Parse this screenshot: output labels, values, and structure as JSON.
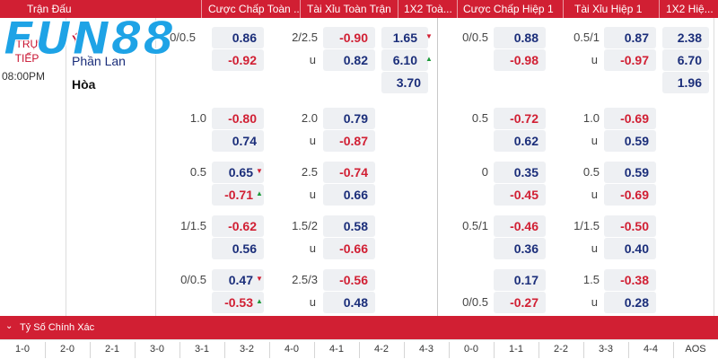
{
  "header": {
    "columns": [
      "Trận Đấu",
      "Cược Chấp Toàn ...",
      "Tài Xỉu Toàn Trận",
      "1X2 Toà...",
      "Cược Chấp Hiệp 1",
      "Tài Xỉu Hiệp 1",
      "1X2 Hiệ..."
    ]
  },
  "logo": {
    "text": "FUN88",
    "color": "#1ea3e6"
  },
  "match": {
    "status_line1": "TRỰC",
    "status_line2": "TIẾP",
    "time": "08:00PM",
    "home": "Ý",
    "away": "Phần Lan",
    "draw": "Hòa"
  },
  "rows": [
    {
      "ft_hdp": {
        "line": "0/0.5",
        "home": "0.86",
        "away": "-0.92"
      },
      "ft_ou": {
        "line": "2/2.5",
        "over": "-0.90",
        "under_label": "u",
        "under": "0.82"
      },
      "ft_1x2": {
        "home": "1.65",
        "away": "6.10",
        "draw": "3.70"
      },
      "h1_hdp": {
        "line": "0/0.5",
        "home": "0.88",
        "away": "-0.98"
      },
      "h1_ou": {
        "line": "0.5/1",
        "over": "0.87",
        "under_label": "u",
        "under": "-0.97"
      },
      "h1_1x2": {
        "home": "2.38",
        "away": "6.70",
        "draw": "1.96"
      }
    },
    {
      "ft_hdp": {
        "line": "1.0",
        "home": "-0.80",
        "away": "0.74"
      },
      "ft_ou": {
        "line": "2.0",
        "over": "0.79",
        "under_label": "u",
        "under": "-0.87"
      },
      "h1_hdp": {
        "line": "0.5",
        "home": "-0.72",
        "away": "0.62"
      },
      "h1_ou": {
        "line": "1.0",
        "over": "-0.69",
        "under_label": "u",
        "under": "0.59"
      }
    },
    {
      "ft_hdp": {
        "line": "0.5",
        "home": "0.65",
        "away": "-0.71"
      },
      "ft_ou": {
        "line": "2.5",
        "over": "-0.74",
        "under_label": "u",
        "under": "0.66"
      },
      "h1_hdp": {
        "line": "0",
        "home": "0.35",
        "away": "-0.45"
      },
      "h1_ou": {
        "line": "0.5",
        "over": "0.59",
        "under_label": "u",
        "under": "-0.69"
      }
    },
    {
      "ft_hdp": {
        "line": "1/1.5",
        "home": "-0.62",
        "away": "0.56"
      },
      "ft_ou": {
        "line": "1.5/2",
        "over": "0.58",
        "under_label": "u",
        "under": "-0.66"
      },
      "h1_hdp": {
        "line": "0.5/1",
        "home": "-0.46",
        "away": "0.36"
      },
      "h1_ou": {
        "line": "1/1.5",
        "over": "-0.50",
        "under_label": "u",
        "under": "0.40"
      }
    },
    {
      "ft_hdp": {
        "line": "0/0.5",
        "home": "0.47",
        "away": "-0.53"
      },
      "ft_ou": {
        "line": "2.5/3",
        "over": "-0.56",
        "under_label": "u",
        "under": "0.48"
      },
      "h1_hdp": {
        "line2": "0/0.5",
        "home": "0.17",
        "away": "-0.27"
      },
      "h1_ou": {
        "line": "1.5",
        "over": "-0.38",
        "under_label": "u",
        "under": "0.28"
      }
    }
  ],
  "bottom": {
    "title": "Tỷ Số Chính Xác",
    "scores": [
      "1-0",
      "2-0",
      "2-1",
      "3-0",
      "3-1",
      "3-2",
      "4-0",
      "4-1",
      "4-2",
      "4-3",
      "0-0",
      "1-1",
      "2-2",
      "3-3",
      "4-4",
      "AOS"
    ]
  },
  "colors": {
    "header_bg": "#d11f33",
    "negative": "#d11f33",
    "positive": "#1b2e7a",
    "up_arrow": "#1d9a3a",
    "down_arrow": "#d11f33"
  }
}
